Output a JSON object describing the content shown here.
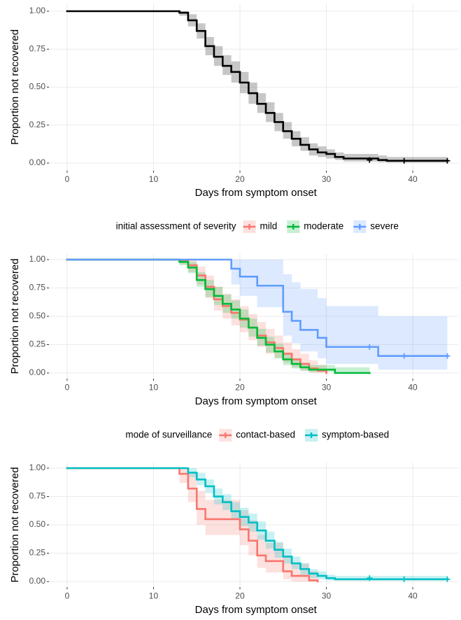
{
  "chart_data": [
    {
      "type": "step",
      "xlabel": "Days from symptom onset",
      "ylabel": "Proportion not recovered",
      "xlim": [
        -2.1,
        45.3
      ],
      "ylim": [
        -0.05,
        1.05
      ],
      "xticks": [
        0,
        10,
        20,
        30,
        40
      ],
      "yticks": [
        {
          "value": 0,
          "label": "0.00"
        },
        {
          "value": 0.25,
          "label": "0.25"
        },
        {
          "value": 0.5,
          "label": "0.50"
        },
        {
          "value": 0.75,
          "label": "0.75"
        },
        {
          "value": 1,
          "label": "1.00"
        }
      ],
      "grid": true,
      "series": [
        {
          "color": "#000000",
          "x": [
            0,
            13,
            14,
            15,
            16,
            17,
            18,
            19,
            20,
            21,
            22,
            23,
            24,
            25,
            26,
            27,
            28,
            29,
            30,
            31,
            32,
            36,
            37,
            44
          ],
          "values": [
            1,
            0.99,
            0.94,
            0.87,
            0.77,
            0.7,
            0.64,
            0.6,
            0.53,
            0.46,
            0.39,
            0.33,
            0.27,
            0.21,
            0.16,
            0.12,
            0.09,
            0.07,
            0.06,
            0.04,
            0.03,
            0.02,
            0.015,
            0.015
          ],
          "lower": [
            1,
            0.97,
            0.9,
            0.82,
            0.71,
            0.64,
            0.58,
            0.53,
            0.46,
            0.39,
            0.33,
            0.27,
            0.21,
            0.16,
            0.11,
            0.08,
            0.05,
            0.04,
            0.03,
            0.02,
            0.01,
            0.005,
            0.002,
            0.002
          ],
          "upper": [
            1,
            1,
            0.98,
            0.92,
            0.83,
            0.77,
            0.71,
            0.67,
            0.6,
            0.53,
            0.46,
            0.4,
            0.33,
            0.27,
            0.21,
            0.17,
            0.13,
            0.11,
            0.09,
            0.07,
            0.06,
            0.05,
            0.04,
            0.04
          ],
          "censor_x": [
            35,
            39,
            44
          ],
          "censor_y": [
            0.02,
            0.015,
            0.015
          ]
        }
      ]
    },
    {
      "type": "step",
      "xlabel": "Days from symptom onset",
      "ylabel": "Proportion not recovered",
      "legend_title": "initial assessment of severity",
      "xlim": [
        -2.1,
        45.3
      ],
      "ylim": [
        -0.05,
        1.05
      ],
      "xticks": [
        0,
        10,
        20,
        30,
        40
      ],
      "yticks": [
        {
          "value": 0,
          "label": "0.00"
        },
        {
          "value": 0.25,
          "label": "0.25"
        },
        {
          "value": 0.5,
          "label": "0.50"
        },
        {
          "value": 0.75,
          "label": "0.75"
        },
        {
          "value": 1,
          "label": "1.00"
        }
      ],
      "grid": true,
      "series": [
        {
          "name": "mild",
          "color": "#F8766D",
          "x": [
            0,
            13,
            14,
            15,
            16,
            17,
            18,
            19,
            20,
            21,
            22,
            23,
            24,
            25,
            26,
            27,
            28,
            29,
            30
          ],
          "values": [
            1,
            0.99,
            0.95,
            0.86,
            0.76,
            0.65,
            0.59,
            0.53,
            0.47,
            0.4,
            0.33,
            0.27,
            0.22,
            0.17,
            0.12,
            0.08,
            0.04,
            0.02,
            0
          ],
          "lower": [
            1,
            0.96,
            0.89,
            0.78,
            0.66,
            0.55,
            0.48,
            0.42,
            0.36,
            0.29,
            0.23,
            0.17,
            0.13,
            0.09,
            0.05,
            0.02,
            0,
            0,
            0
          ],
          "upper": [
            1,
            1,
            1,
            0.94,
            0.86,
            0.76,
            0.7,
            0.65,
            0.59,
            0.52,
            0.45,
            0.39,
            0.33,
            0.27,
            0.21,
            0.17,
            0.11,
            0.07,
            0.03
          ],
          "censor_x": [],
          "censor_y": []
        },
        {
          "name": "moderate",
          "color": "#00BA38",
          "x": [
            0,
            13,
            14,
            15,
            16,
            17,
            18,
            19,
            20,
            21,
            22,
            23,
            24,
            25,
            26,
            27,
            28,
            31,
            35
          ],
          "values": [
            1,
            0.98,
            0.93,
            0.82,
            0.74,
            0.68,
            0.61,
            0.56,
            0.48,
            0.4,
            0.31,
            0.25,
            0.19,
            0.12,
            0.08,
            0.05,
            0.03,
            0,
            0
          ],
          "lower": [
            1,
            0.95,
            0.88,
            0.76,
            0.67,
            0.6,
            0.53,
            0.48,
            0.4,
            0.32,
            0.24,
            0.18,
            0.13,
            0.07,
            0.04,
            0.02,
            0.01,
            0,
            0
          ],
          "upper": [
            1,
            1,
            0.98,
            0.89,
            0.82,
            0.76,
            0.69,
            0.64,
            0.56,
            0.48,
            0.39,
            0.32,
            0.26,
            0.18,
            0.13,
            0.09,
            0.07,
            0.05,
            0.05
          ],
          "censor_x": [],
          "censor_y": []
        },
        {
          "name": "severe",
          "color": "#619CFF",
          "x": [
            0,
            19,
            20,
            22,
            25,
            26,
            27,
            29,
            30,
            36,
            44
          ],
          "values": [
            1,
            0.92,
            0.85,
            0.77,
            0.54,
            0.46,
            0.38,
            0.31,
            0.23,
            0.15,
            0.15
          ],
          "lower": [
            1,
            0.78,
            0.68,
            0.58,
            0.33,
            0.26,
            0.19,
            0.13,
            0.08,
            0.03,
            0.03
          ],
          "upper": [
            1,
            1,
            1,
            1,
            0.87,
            0.8,
            0.74,
            0.66,
            0.59,
            0.5,
            0.5
          ],
          "censor_x": [
            35,
            39,
            44
          ],
          "censor_y": [
            0.23,
            0.15,
            0.15
          ]
        }
      ]
    },
    {
      "type": "step",
      "xlabel": "Days from symptom onset",
      "ylabel": "Proportion not recovered",
      "legend_title": "mode of surveillance",
      "xlim": [
        -2.1,
        45.3
      ],
      "ylim": [
        -0.05,
        1.05
      ],
      "xticks": [
        0,
        10,
        20,
        30,
        40
      ],
      "yticks": [
        {
          "value": 0,
          "label": "0.00"
        },
        {
          "value": 0.25,
          "label": "0.25"
        },
        {
          "value": 0.5,
          "label": "0.50"
        },
        {
          "value": 0.75,
          "label": "0.75"
        },
        {
          "value": 1,
          "label": "1.00"
        }
      ],
      "grid": true,
      "series": [
        {
          "name": "contact-based",
          "color": "#F8766D",
          "x": [
            0,
            13,
            14,
            15,
            16,
            20,
            21,
            22,
            23,
            25,
            26,
            28,
            29
          ],
          "values": [
            1,
            0.95,
            0.82,
            0.64,
            0.55,
            0.46,
            0.36,
            0.23,
            0.18,
            0.09,
            0.05,
            0.01,
            0
          ],
          "lower": [
            1,
            0.87,
            0.7,
            0.5,
            0.41,
            0.32,
            0.23,
            0.12,
            0.08,
            0.02,
            0,
            0,
            0
          ],
          "upper": [
            1,
            1,
            0.95,
            0.8,
            0.72,
            0.63,
            0.54,
            0.41,
            0.34,
            0.23,
            0.16,
            0.09,
            0.05
          ],
          "censor_x": [],
          "censor_y": []
        },
        {
          "name": "symptom-based",
          "color": "#00BFC4",
          "x": [
            0,
            14,
            15,
            16,
            17,
            18,
            19,
            20,
            21,
            22,
            23,
            24,
            25,
            26,
            27,
            28,
            29,
            30,
            31,
            44
          ],
          "values": [
            1,
            0.96,
            0.9,
            0.84,
            0.75,
            0.7,
            0.62,
            0.57,
            0.52,
            0.45,
            0.36,
            0.28,
            0.22,
            0.16,
            0.11,
            0.07,
            0.05,
            0.03,
            0.02,
            0.02
          ],
          "lower": [
            1,
            0.92,
            0.85,
            0.78,
            0.68,
            0.63,
            0.55,
            0.49,
            0.44,
            0.37,
            0.29,
            0.21,
            0.16,
            0.11,
            0.06,
            0.03,
            0.02,
            0.01,
            0.005,
            0.005
          ],
          "upper": [
            1,
            1,
            0.96,
            0.9,
            0.82,
            0.77,
            0.7,
            0.65,
            0.6,
            0.53,
            0.44,
            0.35,
            0.29,
            0.22,
            0.16,
            0.11,
            0.09,
            0.06,
            0.05,
            0.05
          ],
          "censor_x": [
            35,
            39,
            44
          ],
          "censor_y": [
            0.03,
            0.02,
            0.02
          ]
        }
      ]
    }
  ]
}
